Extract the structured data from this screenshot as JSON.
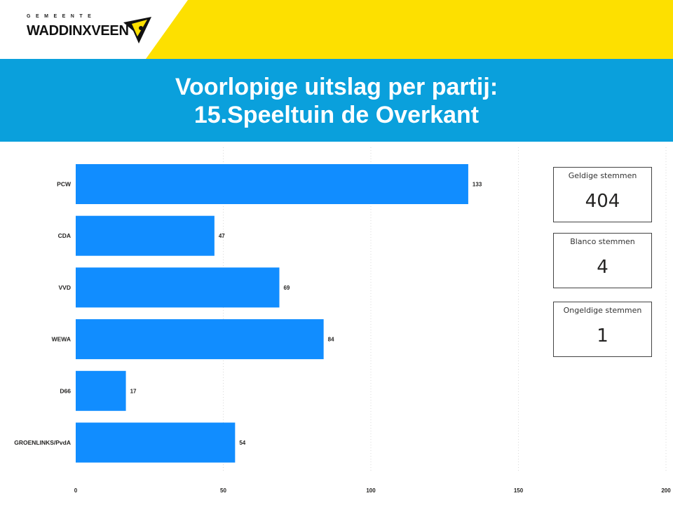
{
  "header": {
    "logo_small": "GEMEENTE",
    "logo_big": "WADDINXVEEN",
    "title_line1": "Voorlopige uitslag per partij:",
    "title_line2": "15.Speeltuin de Overkant",
    "colors": {
      "yellow": "#fde000",
      "blue": "#0aa0dc"
    }
  },
  "chart_data": {
    "type": "bar",
    "orientation": "horizontal",
    "categories": [
      "PCW",
      "CDA",
      "VVD",
      "WEWA",
      "D66",
      "GROENLINKS/PvdA"
    ],
    "values": [
      133,
      47,
      69,
      84,
      17,
      54
    ],
    "x_ticks": [
      "0",
      "50",
      "100",
      "150",
      "200"
    ],
    "xlim": [
      0,
      200
    ],
    "grid": "vertical dotted",
    "bar_color": "#118dff"
  },
  "cards": [
    {
      "label": "Geldige stemmen",
      "value": "404"
    },
    {
      "label": "Blanco stemmen",
      "value": "4"
    },
    {
      "label": "Ongeldige stemmen",
      "value": "1"
    }
  ]
}
